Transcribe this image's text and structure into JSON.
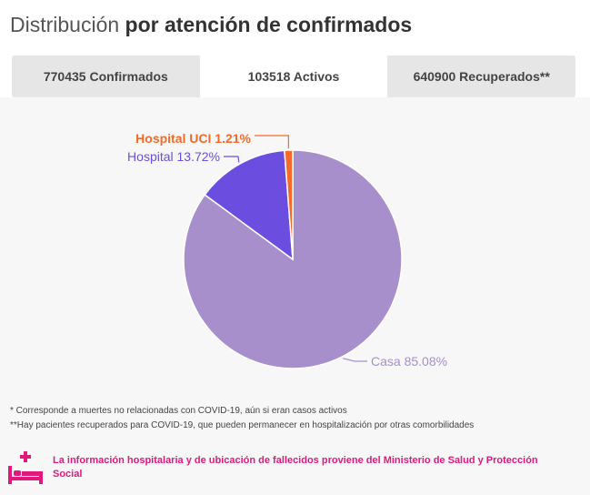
{
  "title": {
    "light": "Distribución",
    "bold": "por atención de confirmados"
  },
  "tabs": [
    {
      "label": "770435 Confirmados",
      "active": false
    },
    {
      "label": "103518 Activos",
      "active": true
    },
    {
      "label": "640900 Recuperados**",
      "active": false
    }
  ],
  "chart_data": {
    "type": "pie",
    "slices": [
      {
        "label": "Casa 85.08%",
        "name": "Casa",
        "value": 85.08,
        "color": "#a78fcb",
        "label_color": "#a78fcb"
      },
      {
        "label": "Hospital 13.72%",
        "name": "Hospital",
        "value": 13.72,
        "color": "#6b4ee0",
        "label_color": "#6b4ee0"
      },
      {
        "label": "Hospital UCI 1.21%",
        "name": "Hospital UCI",
        "value": 1.21,
        "color": "#f26b2a",
        "label_color": "#f26b2a"
      }
    ]
  },
  "notes": [
    "* Corresponde a muertes no relacionadas con COVID-19, aún si eran casos activos",
    "**Hay pacientes recuperados para COVID-19, que pueden permanecer en hospitalización por otras comorbilidades"
  ],
  "source": {
    "icon": "hospital-bed-icon",
    "text": "La información hospitalaria y de ubicación de fallecidos proviene del Ministerio de Salud y Protección Social",
    "color": "#e0197b"
  }
}
